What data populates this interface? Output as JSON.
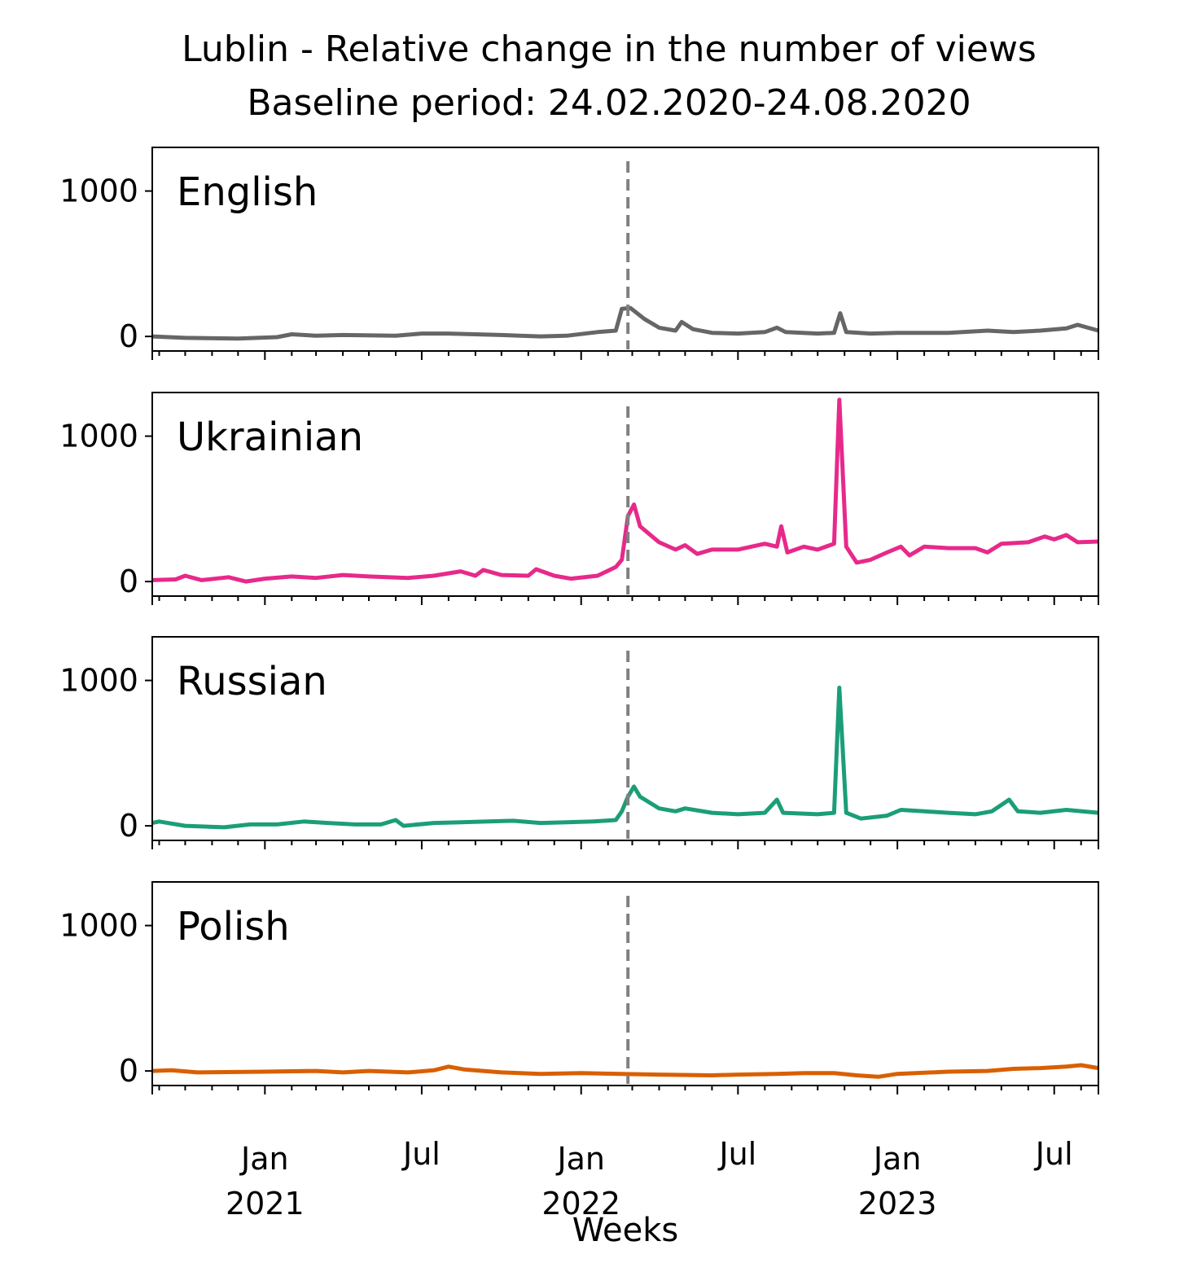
{
  "title_line1": "Lublin - Relative change in the number of views",
  "title_line2": "Baseline period: 24.02.2020-24.08.2020",
  "chart_data": {
    "type": "line",
    "xlabel": "Weeks",
    "x_range": [
      "2020-08-24",
      "2023-08-21"
    ],
    "ylim": [
      -100,
      1300
    ],
    "yticks": [
      0,
      1000
    ],
    "x_ticks_major": [
      {
        "date": "2021-01-01",
        "label1": "Jan",
        "label2": "2021"
      },
      {
        "date": "2021-07-01",
        "label1": "Jul",
        "label2": ""
      },
      {
        "date": "2022-01-01",
        "label1": "Jan",
        "label2": "2022"
      },
      {
        "date": "2022-07-01",
        "label1": "Jul",
        "label2": ""
      },
      {
        "date": "2023-01-01",
        "label1": "Jan",
        "label2": "2023"
      },
      {
        "date": "2023-07-01",
        "label1": "Jul",
        "label2": ""
      }
    ],
    "event_line": {
      "date": "2022-02-24",
      "color": "#808080",
      "style": "dashed"
    },
    "grid": false,
    "panels": [
      {
        "name": "English",
        "color": "#666666",
        "points": [
          [
            "2020-08-24",
            0
          ],
          [
            "2020-10-01",
            -10
          ],
          [
            "2020-12-01",
            -15
          ],
          [
            "2021-01-15",
            -5
          ],
          [
            "2021-02-01",
            15
          ],
          [
            "2021-03-01",
            5
          ],
          [
            "2021-04-01",
            10
          ],
          [
            "2021-06-01",
            5
          ],
          [
            "2021-07-01",
            20
          ],
          [
            "2021-08-01",
            20
          ],
          [
            "2021-10-01",
            10
          ],
          [
            "2021-11-15",
            0
          ],
          [
            "2021-12-15",
            5
          ],
          [
            "2022-01-20",
            30
          ],
          [
            "2022-02-10",
            40
          ],
          [
            "2022-02-17",
            190
          ],
          [
            "2022-02-27",
            195
          ],
          [
            "2022-03-15",
            120
          ],
          [
            "2022-04-01",
            60
          ],
          [
            "2022-04-20",
            40
          ],
          [
            "2022-04-27",
            100
          ],
          [
            "2022-05-10",
            50
          ],
          [
            "2022-06-01",
            25
          ],
          [
            "2022-07-01",
            20
          ],
          [
            "2022-08-01",
            30
          ],
          [
            "2022-08-15",
            60
          ],
          [
            "2022-08-25",
            30
          ],
          [
            "2022-10-01",
            20
          ],
          [
            "2022-10-20",
            25
          ],
          [
            "2022-10-27",
            160
          ],
          [
            "2022-11-03",
            30
          ],
          [
            "2022-12-01",
            20
          ],
          [
            "2023-01-01",
            25
          ],
          [
            "2023-03-01",
            25
          ],
          [
            "2023-04-15",
            40
          ],
          [
            "2023-05-15",
            30
          ],
          [
            "2023-06-15",
            40
          ],
          [
            "2023-07-15",
            55
          ],
          [
            "2023-07-28",
            80
          ],
          [
            "2023-08-21",
            40
          ]
        ]
      },
      {
        "name": "Ukrainian",
        "color": "#e7298a",
        "points": [
          [
            "2020-08-24",
            10
          ],
          [
            "2020-09-20",
            15
          ],
          [
            "2020-10-01",
            40
          ],
          [
            "2020-10-20",
            10
          ],
          [
            "2020-11-20",
            30
          ],
          [
            "2020-12-10",
            0
          ],
          [
            "2021-01-01",
            20
          ],
          [
            "2021-02-01",
            35
          ],
          [
            "2021-03-01",
            25
          ],
          [
            "2021-04-01",
            45
          ],
          [
            "2021-05-01",
            35
          ],
          [
            "2021-06-15",
            25
          ],
          [
            "2021-07-15",
            40
          ],
          [
            "2021-08-15",
            70
          ],
          [
            "2021-09-01",
            40
          ],
          [
            "2021-09-10",
            80
          ],
          [
            "2021-10-01",
            45
          ],
          [
            "2021-11-01",
            40
          ],
          [
            "2021-11-10",
            85
          ],
          [
            "2021-12-01",
            40
          ],
          [
            "2021-12-20",
            20
          ],
          [
            "2022-01-20",
            40
          ],
          [
            "2022-02-10",
            100
          ],
          [
            "2022-02-17",
            150
          ],
          [
            "2022-02-24",
            450
          ],
          [
            "2022-03-03",
            530
          ],
          [
            "2022-03-10",
            380
          ],
          [
            "2022-04-01",
            270
          ],
          [
            "2022-04-20",
            220
          ],
          [
            "2022-05-01",
            250
          ],
          [
            "2022-05-15",
            190
          ],
          [
            "2022-06-01",
            220
          ],
          [
            "2022-07-01",
            220
          ],
          [
            "2022-08-01",
            260
          ],
          [
            "2022-08-15",
            240
          ],
          [
            "2022-08-20",
            380
          ],
          [
            "2022-08-27",
            200
          ],
          [
            "2022-09-15",
            240
          ],
          [
            "2022-10-01",
            220
          ],
          [
            "2022-10-20",
            260
          ],
          [
            "2022-10-26",
            1250
          ],
          [
            "2022-11-03",
            240
          ],
          [
            "2022-11-15",
            130
          ],
          [
            "2022-12-01",
            150
          ],
          [
            "2022-12-20",
            200
          ],
          [
            "2023-01-05",
            240
          ],
          [
            "2023-01-15",
            180
          ],
          [
            "2023-02-01",
            240
          ],
          [
            "2023-03-01",
            230
          ],
          [
            "2023-04-01",
            230
          ],
          [
            "2023-04-15",
            200
          ],
          [
            "2023-05-01",
            260
          ],
          [
            "2023-06-01",
            270
          ],
          [
            "2023-06-20",
            310
          ],
          [
            "2023-07-01",
            290
          ],
          [
            "2023-07-15",
            320
          ],
          [
            "2023-07-28",
            270
          ],
          [
            "2023-08-21",
            275
          ]
        ]
      },
      {
        "name": "Russian",
        "color": "#1b9e77",
        "points": [
          [
            "2020-08-24",
            20
          ],
          [
            "2020-09-01",
            30
          ],
          [
            "2020-10-01",
            0
          ],
          [
            "2020-11-15",
            -10
          ],
          [
            "2020-12-15",
            10
          ],
          [
            "2021-01-15",
            10
          ],
          [
            "2021-02-15",
            30
          ],
          [
            "2021-03-15",
            20
          ],
          [
            "2021-04-15",
            10
          ],
          [
            "2021-05-15",
            10
          ],
          [
            "2021-06-01",
            40
          ],
          [
            "2021-06-10",
            0
          ],
          [
            "2021-07-15",
            20
          ],
          [
            "2021-08-15",
            25
          ],
          [
            "2021-09-15",
            30
          ],
          [
            "2021-10-15",
            35
          ],
          [
            "2021-11-15",
            20
          ],
          [
            "2021-12-15",
            25
          ],
          [
            "2022-01-15",
            30
          ],
          [
            "2022-02-10",
            40
          ],
          [
            "2022-02-17",
            100
          ],
          [
            "2022-02-24",
            200
          ],
          [
            "2022-03-03",
            270
          ],
          [
            "2022-03-10",
            200
          ],
          [
            "2022-04-01",
            120
          ],
          [
            "2022-04-20",
            100
          ],
          [
            "2022-05-01",
            120
          ],
          [
            "2022-06-01",
            90
          ],
          [
            "2022-07-01",
            80
          ],
          [
            "2022-08-01",
            90
          ],
          [
            "2022-08-15",
            180
          ],
          [
            "2022-08-22",
            90
          ],
          [
            "2022-10-01",
            80
          ],
          [
            "2022-10-20",
            90
          ],
          [
            "2022-10-26",
            950
          ],
          [
            "2022-11-03",
            90
          ],
          [
            "2022-11-20",
            50
          ],
          [
            "2022-12-20",
            70
          ],
          [
            "2023-01-05",
            110
          ],
          [
            "2023-02-01",
            100
          ],
          [
            "2023-03-01",
            90
          ],
          [
            "2023-04-01",
            80
          ],
          [
            "2023-04-20",
            100
          ],
          [
            "2023-05-10",
            180
          ],
          [
            "2023-05-20",
            100
          ],
          [
            "2023-06-15",
            90
          ],
          [
            "2023-07-15",
            110
          ],
          [
            "2023-08-21",
            90
          ]
        ]
      },
      {
        "name": "Polish",
        "color": "#d95f02",
        "points": [
          [
            "2020-08-24",
            0
          ],
          [
            "2020-09-15",
            5
          ],
          [
            "2020-10-15",
            -10
          ],
          [
            "2021-01-01",
            -5
          ],
          [
            "2021-03-01",
            0
          ],
          [
            "2021-04-01",
            -10
          ],
          [
            "2021-05-01",
            0
          ],
          [
            "2021-06-15",
            -10
          ],
          [
            "2021-07-15",
            5
          ],
          [
            "2021-08-01",
            30
          ],
          [
            "2021-08-20",
            10
          ],
          [
            "2021-10-01",
            -10
          ],
          [
            "2021-11-15",
            -20
          ],
          [
            "2022-01-01",
            -15
          ],
          [
            "2022-02-15",
            -20
          ],
          [
            "2022-04-01",
            -25
          ],
          [
            "2022-06-01",
            -30
          ],
          [
            "2022-07-01",
            -25
          ],
          [
            "2022-08-15",
            -20
          ],
          [
            "2022-09-15",
            -15
          ],
          [
            "2022-10-20",
            -15
          ],
          [
            "2022-11-15",
            -30
          ],
          [
            "2022-12-10",
            -40
          ],
          [
            "2023-01-01",
            -20
          ],
          [
            "2023-03-01",
            -5
          ],
          [
            "2023-04-15",
            0
          ],
          [
            "2023-05-15",
            15
          ],
          [
            "2023-06-15",
            20
          ],
          [
            "2023-07-15",
            30
          ],
          [
            "2023-08-01",
            40
          ],
          [
            "2023-08-21",
            20
          ]
        ]
      }
    ]
  }
}
